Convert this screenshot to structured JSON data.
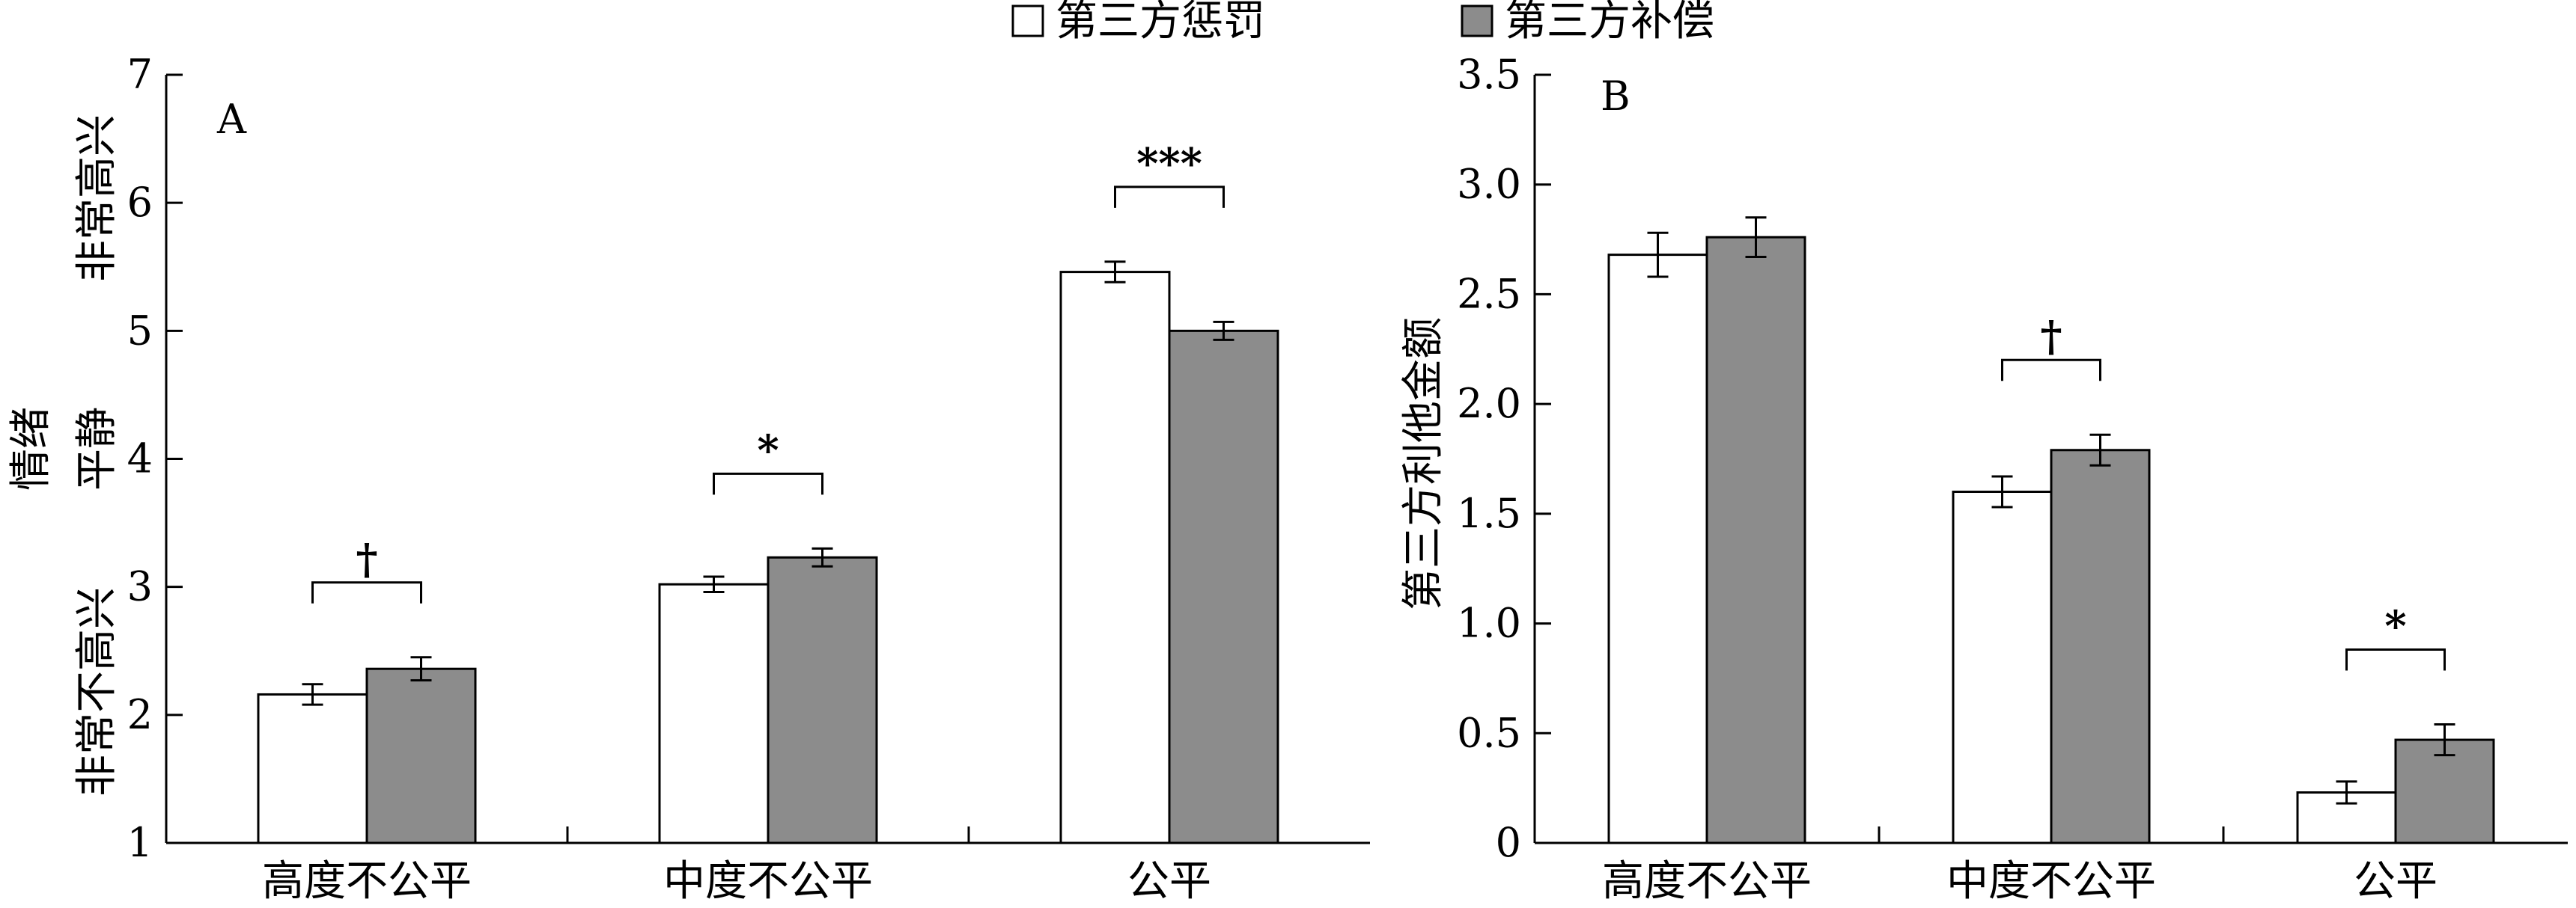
{
  "legend": [
    {
      "label": "第三方惩罚",
      "color": "#ffffff"
    },
    {
      "label": "第三方补偿",
      "color": "#8c8c8c"
    }
  ],
  "chart_data": [
    {
      "type": "bar",
      "panel_label": "A",
      "categories": [
        "高度不公平",
        "中度不公平",
        "公平"
      ],
      "series": [
        {
          "name": "第三方惩罚",
          "values": [
            2.16,
            3.02,
            5.46
          ],
          "errors": [
            0.08,
            0.06,
            0.08
          ],
          "color": "#ffffff"
        },
        {
          "name": "第三方补偿",
          "values": [
            2.36,
            3.23,
            5.0
          ],
          "errors": [
            0.09,
            0.07,
            0.07
          ],
          "color": "#8c8c8c"
        }
      ],
      "ylim": [
        1,
        7
      ],
      "yticks": [
        "1",
        "2",
        "3",
        "4",
        "5",
        "6",
        "7"
      ],
      "ylabel": {
        "high": "非常高兴",
        "mid_line1": "情绪",
        "mid_line2": "平静",
        "low": "非常不高兴"
      },
      "significance": [
        "†",
        "*",
        "***"
      ]
    },
    {
      "type": "bar",
      "panel_label": "B",
      "categories": [
        "高度不公平",
        "中度不公平",
        "公平"
      ],
      "series": [
        {
          "name": "第三方惩罚",
          "values": [
            2.68,
            1.6,
            0.23
          ],
          "errors": [
            0.1,
            0.07,
            0.05
          ],
          "color": "#ffffff"
        },
        {
          "name": "第三方补偿",
          "values": [
            2.76,
            1.79,
            0.47
          ],
          "errors": [
            0.09,
            0.07,
            0.07
          ],
          "color": "#8c8c8c"
        }
      ],
      "ylim": [
        0,
        3.5
      ],
      "yticks": [
        "0",
        "0.5",
        "1.0",
        "1.5",
        "2.0",
        "2.5",
        "3.0",
        "3.5"
      ],
      "ylabel": "第三方利他金额",
      "significance": [
        "",
        "†",
        "*"
      ]
    }
  ]
}
